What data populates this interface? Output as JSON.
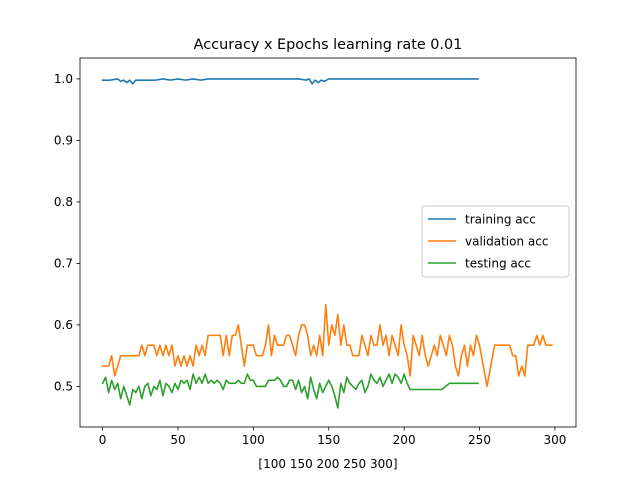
{
  "chart_data": {
    "type": "line",
    "title": "Accuracy x Epochs learning rate 0.01",
    "xlabel": "[100 150 200 250 300]",
    "ylabel": "",
    "xlim": [
      -15,
      314
    ],
    "ylim": [
      0.434,
      1.034
    ],
    "xticks": [
      0,
      50,
      100,
      150,
      200,
      250,
      300
    ],
    "yticks": [
      0.5,
      0.6,
      0.7,
      0.8,
      0.9,
      1.0
    ],
    "ytick_labels": [
      "0.5",
      "0.6",
      "0.7",
      "0.8",
      "0.9",
      "1.0"
    ],
    "grid": false,
    "legend_position": "center-right",
    "series": [
      {
        "name": "training acc",
        "color": "#1f77b4",
        "x": [
          0,
          5,
          10,
          12,
          14,
          16,
          18,
          20,
          22,
          24,
          30,
          35,
          40,
          45,
          50,
          55,
          60,
          65,
          70,
          80,
          90,
          100,
          110,
          120,
          130,
          135,
          137,
          139,
          141,
          143,
          145,
          147,
          150,
          160,
          170,
          180,
          190,
          200,
          210,
          220,
          230,
          240,
          249
        ],
        "values": [
          0.998,
          0.998,
          1.0,
          0.996,
          0.998,
          0.994,
          0.998,
          0.992,
          0.998,
          0.998,
          0.998,
          0.998,
          1.0,
          0.998,
          1.0,
          0.998,
          1.0,
          0.998,
          1.0,
          1.0,
          1.0,
          1.0,
          1.0,
          1.0,
          1.0,
          0.998,
          1.0,
          0.992,
          0.998,
          0.994,
          0.998,
          0.996,
          1.0,
          1.0,
          1.0,
          1.0,
          1.0,
          1.0,
          1.0,
          1.0,
          1.0,
          1.0,
          1.0
        ]
      },
      {
        "name": "validation acc",
        "color": "#ff7f0e",
        "x": [
          0,
          2,
          4,
          6,
          8,
          10,
          12,
          14,
          16,
          18,
          20,
          22,
          24,
          26,
          28,
          30,
          32,
          34,
          36,
          38,
          40,
          42,
          44,
          46,
          48,
          50,
          52,
          54,
          56,
          58,
          60,
          62,
          64,
          66,
          68,
          70,
          72,
          74,
          76,
          78,
          80,
          82,
          84,
          86,
          88,
          90,
          92,
          94,
          96,
          98,
          100,
          102,
          104,
          106,
          108,
          110,
          112,
          114,
          116,
          118,
          120,
          122,
          124,
          126,
          128,
          130,
          132,
          134,
          136,
          138,
          140,
          142,
          144,
          146,
          148,
          150,
          152,
          154,
          156,
          158,
          160,
          162,
          164,
          166,
          168,
          170,
          172,
          174,
          176,
          178,
          180,
          182,
          184,
          186,
          188,
          190,
          192,
          194,
          196,
          198,
          200,
          202,
          204,
          206,
          208,
          210,
          212,
          214,
          216,
          218,
          220,
          222,
          224,
          226,
          228,
          230,
          232,
          234,
          236,
          238,
          240,
          242,
          244,
          246,
          248,
          250,
          255,
          260,
          265,
          270,
          272,
          274,
          276,
          278,
          280,
          282,
          284,
          286,
          288,
          290,
          292,
          294,
          296,
          298
        ],
        "values": [
          0.533,
          0.533,
          0.533,
          0.55,
          0.517,
          0.533,
          0.55,
          0.55,
          0.55,
          0.55,
          0.55,
          0.55,
          0.55,
          0.567,
          0.55,
          0.567,
          0.567,
          0.567,
          0.55,
          0.567,
          0.55,
          0.567,
          0.55,
          0.567,
          0.533,
          0.55,
          0.533,
          0.55,
          0.533,
          0.55,
          0.533,
          0.567,
          0.55,
          0.567,
          0.55,
          0.583,
          0.583,
          0.583,
          0.583,
          0.583,
          0.55,
          0.583,
          0.55,
          0.583,
          0.583,
          0.6,
          0.567,
          0.533,
          0.567,
          0.567,
          0.567,
          0.55,
          0.55,
          0.55,
          0.567,
          0.6,
          0.55,
          0.583,
          0.567,
          0.567,
          0.567,
          0.583,
          0.583,
          0.567,
          0.55,
          0.583,
          0.6,
          0.6,
          0.583,
          0.55,
          0.567,
          0.55,
          0.583,
          0.55,
          0.633,
          0.567,
          0.6,
          0.583,
          0.617,
          0.567,
          0.6,
          0.567,
          0.567,
          0.55,
          0.55,
          0.55,
          0.583,
          0.567,
          0.55,
          0.583,
          0.567,
          0.567,
          0.6,
          0.567,
          0.583,
          0.55,
          0.583,
          0.567,
          0.55,
          0.6,
          0.567,
          0.55,
          0.517,
          0.583,
          0.567,
          0.55,
          0.583,
          0.55,
          0.533,
          0.55,
          0.567,
          0.55,
          0.583,
          0.567,
          0.55,
          0.583,
          0.567,
          0.533,
          0.517,
          0.55,
          0.567,
          0.533,
          0.567,
          0.55,
          0.583,
          0.567,
          0.5,
          0.567,
          0.567,
          0.567,
          0.55,
          0.55,
          0.517,
          0.533,
          0.517,
          0.567,
          0.567,
          0.567,
          0.583,
          0.567,
          0.583,
          0.567,
          0.567,
          0.567
        ],
        "note_values_order": "values aligned to x"
      },
      {
        "name": "testing acc",
        "color": "#2ca02c",
        "x": [
          0,
          2,
          4,
          6,
          8,
          10,
          12,
          14,
          16,
          18,
          20,
          22,
          24,
          26,
          28,
          30,
          32,
          34,
          36,
          38,
          40,
          42,
          44,
          46,
          48,
          50,
          52,
          54,
          56,
          58,
          60,
          62,
          64,
          66,
          68,
          70,
          72,
          74,
          76,
          78,
          80,
          82,
          84,
          86,
          88,
          90,
          92,
          94,
          96,
          98,
          100,
          102,
          104,
          106,
          108,
          110,
          112,
          114,
          116,
          118,
          120,
          122,
          124,
          126,
          128,
          130,
          132,
          134,
          136,
          138,
          140,
          142,
          144,
          146,
          148,
          150,
          152,
          154,
          156,
          158,
          160,
          162,
          164,
          166,
          168,
          170,
          172,
          174,
          176,
          178,
          180,
          182,
          184,
          186,
          188,
          190,
          192,
          194,
          196,
          198,
          200,
          202,
          204,
          206,
          208,
          210,
          215,
          220,
          225,
          230,
          235,
          240,
          245,
          249
        ],
        "values": [
          0.505,
          0.515,
          0.49,
          0.51,
          0.495,
          0.505,
          0.48,
          0.5,
          0.485,
          0.47,
          0.495,
          0.49,
          0.5,
          0.48,
          0.5,
          0.505,
          0.485,
          0.5,
          0.495,
          0.51,
          0.485,
          0.505,
          0.5,
          0.49,
          0.505,
          0.495,
          0.51,
          0.505,
          0.51,
          0.495,
          0.52,
          0.505,
          0.515,
          0.505,
          0.52,
          0.505,
          0.51,
          0.505,
          0.51,
          0.505,
          0.495,
          0.51,
          0.505,
          0.505,
          0.505,
          0.51,
          0.505,
          0.505,
          0.52,
          0.51,
          0.51,
          0.5,
          0.5,
          0.5,
          0.5,
          0.51,
          0.51,
          0.51,
          0.515,
          0.51,
          0.5,
          0.5,
          0.51,
          0.51,
          0.495,
          0.51,
          0.49,
          0.5,
          0.48,
          0.515,
          0.495,
          0.48,
          0.505,
          0.49,
          0.5,
          0.51,
          0.5,
          0.485,
          0.465,
          0.505,
          0.49,
          0.515,
          0.505,
          0.5,
          0.495,
          0.505,
          0.51,
          0.49,
          0.5,
          0.52,
          0.51,
          0.505,
          0.515,
          0.5,
          0.51,
          0.52,
          0.505,
          0.52,
          0.515,
          0.505,
          0.52,
          0.505,
          0.495,
          0.495,
          0.495,
          0.495,
          0.495,
          0.495,
          0.495,
          0.505,
          0.505,
          0.505,
          0.505,
          0.505
        ]
      }
    ]
  }
}
